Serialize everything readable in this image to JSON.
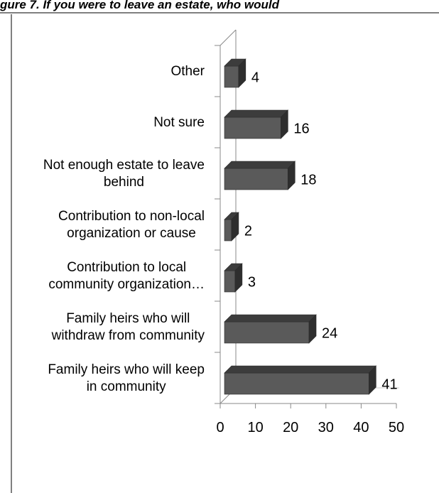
{
  "chart_data": {
    "type": "bar",
    "orientation": "horizontal",
    "three_d": true,
    "title": "",
    "xlabel": "",
    "ylabel": "",
    "categories": [
      [
        "Family heirs  who will keep",
        "in community"
      ],
      [
        "Family heirs who will",
        "withdraw from community"
      ],
      [
        "Contribution to local",
        "community organization…"
      ],
      [
        "Contribution to non-local",
        "organization or cause"
      ],
      [
        "Not enough estate to leave",
        "behind"
      ],
      [
        "Not sure"
      ],
      [
        "Other"
      ]
    ],
    "values": [
      41,
      24,
      3,
      2,
      18,
      16,
      4
    ],
    "xlim": [
      0,
      50
    ],
    "x_ticks": [
      0,
      10,
      20,
      30,
      40,
      50
    ],
    "grid": false,
    "legend": "none",
    "bar_color": "#5a5a5a",
    "bar_top_color": "#3c3c3c",
    "bar_side_color": "#2e2e2e"
  },
  "page": {
    "title_fragment": "gure 7. If you were to leave an estate, who would"
  }
}
